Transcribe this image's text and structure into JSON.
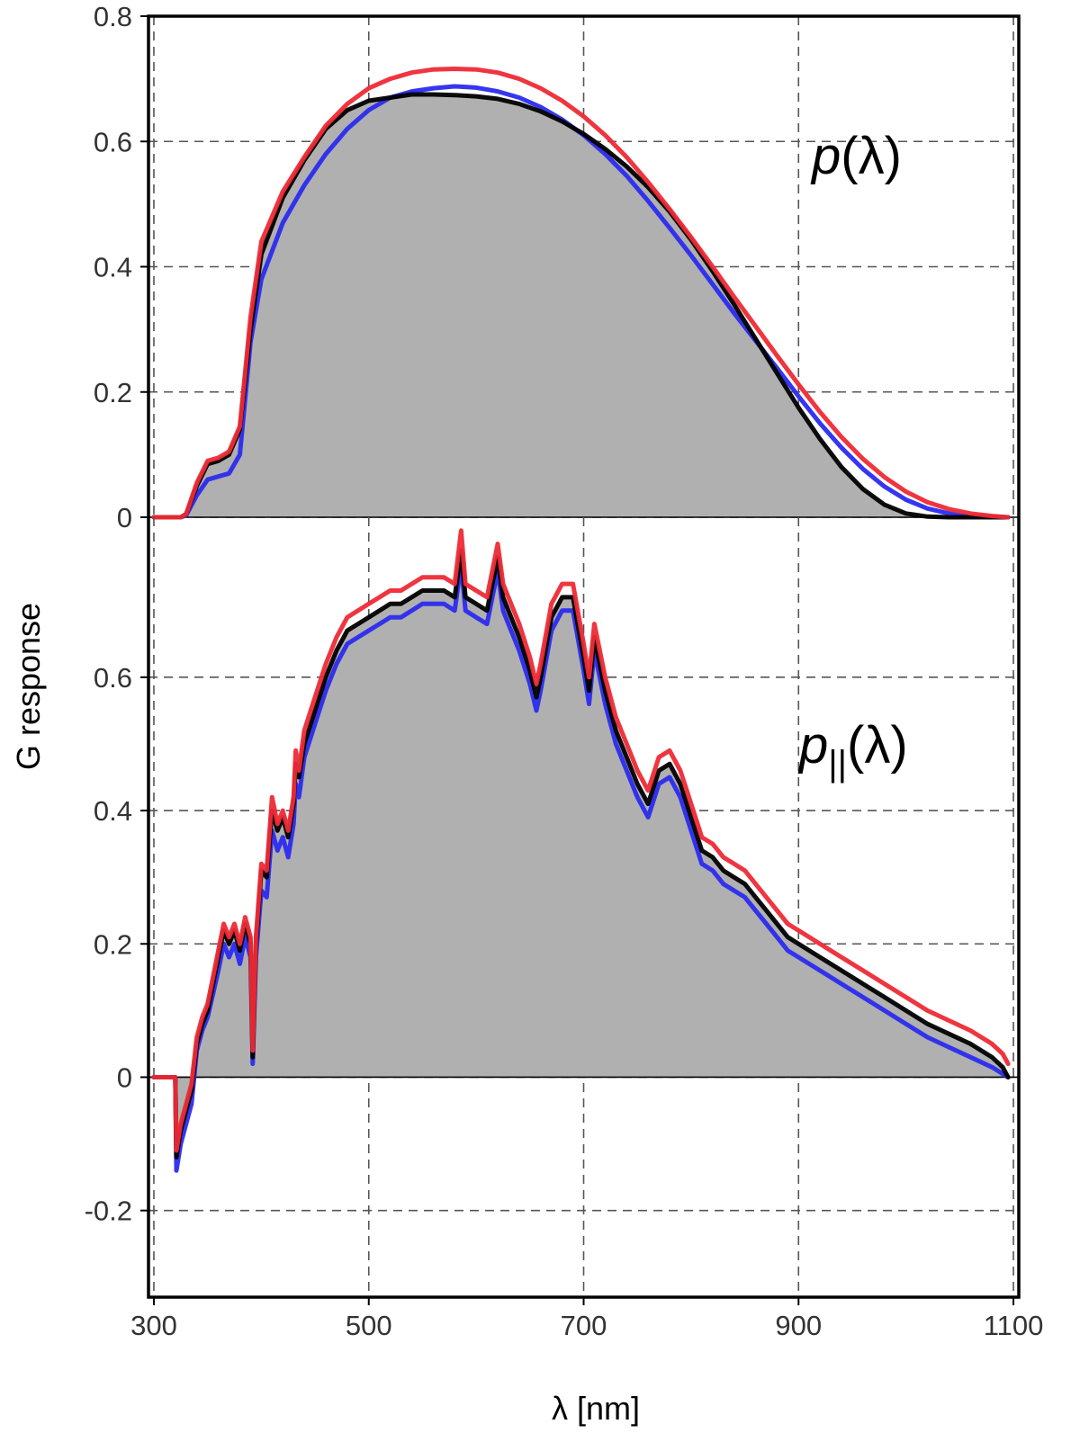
{
  "chart_data": {
    "type": "area",
    "xlabel": "λ [nm]",
    "ylabel": "G response",
    "xlim": [
      295,
      1105
    ],
    "x_ticks": [
      "300",
      "500",
      "700",
      "900",
      "1100"
    ],
    "x_tick_values": [
      300,
      500,
      700,
      900,
      1100
    ],
    "grid": true,
    "colors": {
      "fill": "#b0b0b0",
      "black": "#000000",
      "red": "#ee2a35",
      "blue": "#2b2bf0"
    },
    "panels": [
      {
        "label": "p(λ)",
        "label_main": "p",
        "label_sub": "",
        "label_args": "(λ)",
        "ylim": [
          0,
          0.8
        ],
        "y_tick_values": [
          0,
          0.2,
          0.4,
          0.6,
          0.8
        ],
        "y_ticks": [
          "0",
          "0.2",
          "0.4",
          "0.6",
          "0.8"
        ],
        "x": [
          300,
          320,
          325,
          330,
          340,
          350,
          360,
          370,
          380,
          390,
          400,
          420,
          440,
          460,
          480,
          500,
          520,
          540,
          560,
          580,
          600,
          620,
          640,
          660,
          680,
          700,
          720,
          740,
          760,
          780,
          800,
          820,
          840,
          860,
          880,
          900,
          920,
          940,
          960,
          980,
          1000,
          1020,
          1040,
          1060,
          1080,
          1095
        ],
        "series": [
          {
            "color": "black",
            "filled": true,
            "values": [
              0,
              0,
              0,
              0.005,
              0.05,
              0.085,
              0.09,
              0.1,
              0.14,
              0.3,
              0.42,
              0.51,
              0.57,
              0.62,
              0.65,
              0.665,
              0.67,
              0.675,
              0.675,
              0.674,
              0.672,
              0.668,
              0.66,
              0.648,
              0.632,
              0.612,
              0.588,
              0.56,
              0.527,
              0.488,
              0.443,
              0.393,
              0.34,
              0.285,
              0.23,
              0.175,
              0.125,
              0.08,
              0.045,
              0.02,
              0.006,
              0.001,
              0,
              0,
              0,
              0
            ]
          },
          {
            "color": "red",
            "filled": false,
            "values": [
              0,
              0,
              0,
              0.005,
              0.055,
              0.09,
              0.095,
              0.105,
              0.145,
              0.32,
              0.44,
              0.52,
              0.575,
              0.625,
              0.66,
              0.685,
              0.7,
              0.71,
              0.715,
              0.716,
              0.715,
              0.71,
              0.7,
              0.685,
              0.665,
              0.64,
              0.61,
              0.575,
              0.535,
              0.492,
              0.447,
              0.4,
              0.352,
              0.305,
              0.258,
              0.212,
              0.168,
              0.128,
              0.093,
              0.064,
              0.041,
              0.024,
              0.013,
              0.006,
              0.002,
              0
            ]
          },
          {
            "color": "blue",
            "filled": false,
            "values": [
              0,
              0,
              0,
              0.003,
              0.035,
              0.06,
              0.065,
              0.07,
              0.1,
              0.28,
              0.38,
              0.47,
              0.53,
              0.58,
              0.62,
              0.65,
              0.67,
              0.68,
              0.685,
              0.688,
              0.686,
              0.68,
              0.67,
              0.655,
              0.635,
              0.61,
              0.58,
              0.545,
              0.505,
              0.462,
              0.418,
              0.372,
              0.326,
              0.282,
              0.238,
              0.193,
              0.15,
              0.111,
              0.077,
              0.049,
              0.028,
              0.014,
              0.006,
              0.002,
              0,
              0
            ]
          }
        ]
      },
      {
        "label": "p||(λ)",
        "label_main": "p",
        "label_sub": "||",
        "label_args": "(λ)",
        "ylim": [
          -0.33,
          0.84
        ],
        "y_tick_values": [
          -0.2,
          0,
          0.2,
          0.4,
          0.6
        ],
        "y_ticks": [
          "-0.2",
          "0",
          "0.2",
          "0.4",
          "0.6"
        ],
        "x": [
          300,
          315,
          320,
          321,
          325,
          330,
          335,
          340,
          345,
          350,
          360,
          365,
          370,
          375,
          380,
          385,
          390,
          392,
          395,
          400,
          405,
          410,
          415,
          420,
          425,
          430,
          432,
          435,
          440,
          450,
          460,
          470,
          480,
          490,
          500,
          510,
          520,
          530,
          540,
          550,
          560,
          570,
          580,
          586,
          590,
          600,
          610,
          620,
          625,
          630,
          640,
          650,
          656,
          660,
          670,
          680,
          690,
          700,
          705,
          710,
          720,
          730,
          740,
          750,
          760,
          770,
          780,
          790,
          800,
          810,
          820,
          830,
          840,
          850,
          860,
          870,
          880,
          890,
          900,
          920,
          940,
          960,
          980,
          1000,
          1020,
          1040,
          1060,
          1080,
          1090,
          1095
        ],
        "series": [
          {
            "color": "black",
            "filled": true,
            "values": [
              0,
              0,
              0,
              -0.12,
              -0.08,
              -0.05,
              -0.02,
              0.05,
              0.08,
              0.1,
              0.18,
              0.22,
              0.2,
              0.22,
              0.19,
              0.23,
              0.2,
              0.03,
              0.2,
              0.31,
              0.3,
              0.4,
              0.37,
              0.39,
              0.36,
              0.41,
              0.47,
              0.45,
              0.5,
              0.55,
              0.6,
              0.64,
              0.67,
              0.68,
              0.69,
              0.7,
              0.71,
              0.71,
              0.72,
              0.73,
              0.73,
              0.73,
              0.72,
              0.79,
              0.72,
              0.71,
              0.7,
              0.78,
              0.72,
              0.7,
              0.66,
              0.61,
              0.57,
              0.6,
              0.69,
              0.72,
              0.72,
              0.63,
              0.58,
              0.66,
              0.58,
              0.52,
              0.48,
              0.44,
              0.41,
              0.46,
              0.47,
              0.44,
              0.39,
              0.34,
              0.33,
              0.31,
              0.3,
              0.29,
              0.27,
              0.25,
              0.23,
              0.21,
              0.2,
              0.18,
              0.16,
              0.14,
              0.12,
              0.1,
              0.08,
              0.065,
              0.05,
              0.03,
              0.015,
              0
            ]
          },
          {
            "color": "red",
            "filled": false,
            "values": [
              0,
              0,
              0,
              -0.11,
              -0.07,
              -0.04,
              -0.01,
              0.06,
              0.09,
              0.11,
              0.19,
              0.23,
              0.21,
              0.23,
              0.2,
              0.24,
              0.21,
              0.04,
              0.21,
              0.32,
              0.31,
              0.42,
              0.38,
              0.4,
              0.37,
              0.42,
              0.49,
              0.46,
              0.52,
              0.57,
              0.62,
              0.66,
              0.69,
              0.7,
              0.71,
              0.72,
              0.73,
              0.73,
              0.74,
              0.75,
              0.75,
              0.75,
              0.74,
              0.82,
              0.74,
              0.73,
              0.72,
              0.8,
              0.74,
              0.72,
              0.68,
              0.63,
              0.59,
              0.62,
              0.71,
              0.74,
              0.74,
              0.65,
              0.6,
              0.68,
              0.6,
              0.54,
              0.5,
              0.46,
              0.43,
              0.48,
              0.49,
              0.46,
              0.41,
              0.36,
              0.35,
              0.33,
              0.32,
              0.31,
              0.29,
              0.27,
              0.25,
              0.23,
              0.22,
              0.2,
              0.18,
              0.16,
              0.14,
              0.12,
              0.1,
              0.085,
              0.07,
              0.05,
              0.035,
              0.02
            ]
          },
          {
            "color": "blue",
            "filled": false,
            "values": [
              0,
              0,
              0,
              -0.14,
              -0.1,
              -0.07,
              -0.04,
              0.04,
              0.07,
              0.09,
              0.16,
              0.2,
              0.18,
              0.2,
              0.17,
              0.21,
              0.18,
              0.02,
              0.18,
              0.28,
              0.27,
              0.37,
              0.34,
              0.36,
              0.33,
              0.38,
              0.44,
              0.42,
              0.48,
              0.53,
              0.58,
              0.62,
              0.65,
              0.66,
              0.67,
              0.68,
              0.69,
              0.69,
              0.7,
              0.71,
              0.71,
              0.71,
              0.7,
              0.77,
              0.7,
              0.69,
              0.68,
              0.76,
              0.7,
              0.68,
              0.64,
              0.59,
              0.55,
              0.58,
              0.67,
              0.7,
              0.7,
              0.61,
              0.56,
              0.64,
              0.56,
              0.5,
              0.46,
              0.42,
              0.39,
              0.44,
              0.45,
              0.42,
              0.37,
              0.32,
              0.31,
              0.29,
              0.28,
              0.27,
              0.25,
              0.23,
              0.21,
              0.19,
              0.18,
              0.16,
              0.14,
              0.12,
              0.1,
              0.08,
              0.06,
              0.045,
              0.03,
              0.015,
              0.005,
              0
            ]
          }
        ]
      }
    ]
  }
}
